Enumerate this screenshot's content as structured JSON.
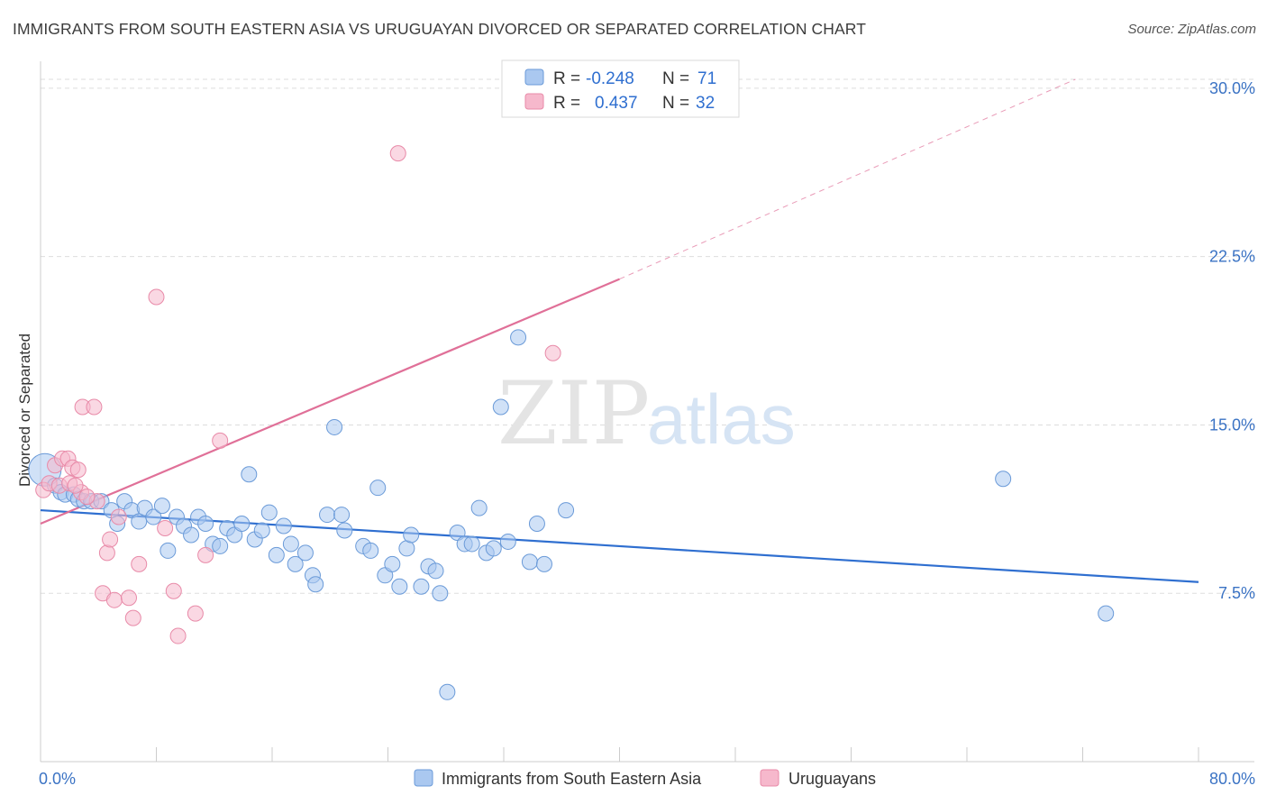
{
  "title": "IMMIGRANTS FROM SOUTH EASTERN ASIA VS URUGUAYAN DIVORCED OR SEPARATED CORRELATION CHART",
  "source": "Source: ZipAtlas.com",
  "watermark": {
    "zip": "ZIP",
    "atlas": "atlas"
  },
  "colors": {
    "blue_fill": "#aac8f0",
    "blue_stroke": "#6a9ad8",
    "blue_line": "#2f6fd0",
    "pink_fill": "#f6b8cc",
    "pink_stroke": "#e88aa8",
    "pink_line": "#e07098",
    "grid": "#dddddd",
    "tick_text": "#3b73c4"
  },
  "legend": {
    "rows": [
      {
        "r_label": "R =",
        "r_value": "-0.248",
        "n_label": "N =",
        "n_value": "71",
        "series": "blue"
      },
      {
        "r_label": "R =",
        "r_value": "0.437",
        "n_label": "N =",
        "n_value": "32",
        "series": "pink"
      }
    ]
  },
  "chart_data": {
    "type": "scatter",
    "title": "IMMIGRANTS FROM SOUTH EASTERN ASIA VS URUGUAYAN DIVORCED OR SEPARATED CORRELATION CHART",
    "xlabel": "",
    "ylabel": "Divorced or Separated",
    "xlim": [
      0,
      80
    ],
    "ylim": [
      0,
      31
    ],
    "x_tick_labels": [
      {
        "value": 0,
        "label": "0.0%"
      },
      {
        "value": 80,
        "label": "80.0%"
      }
    ],
    "y_ticks": [
      {
        "value": 7.5,
        "label": "7.5%"
      },
      {
        "value": 15,
        "label": "15.0%"
      },
      {
        "value": 22.5,
        "label": "22.5%"
      },
      {
        "value": 30,
        "label": "30.0%"
      }
    ],
    "grid": true,
    "legend_position": "top-center",
    "series": [
      {
        "name": "Immigrants from South Eastern Asia",
        "color": "#aac8f0",
        "points": [
          [
            0.3,
            13.0
          ],
          [
            1.0,
            12.3
          ],
          [
            1.4,
            12.0
          ],
          [
            1.7,
            11.9
          ],
          [
            2.3,
            11.9
          ],
          [
            2.6,
            11.7
          ],
          [
            3.0,
            11.6
          ],
          [
            3.5,
            11.6
          ],
          [
            4.2,
            11.6
          ],
          [
            4.9,
            11.2
          ],
          [
            5.3,
            10.6
          ],
          [
            5.8,
            11.6
          ],
          [
            6.3,
            11.2
          ],
          [
            6.8,
            10.7
          ],
          [
            7.2,
            11.3
          ],
          [
            7.8,
            10.9
          ],
          [
            8.4,
            11.4
          ],
          [
            8.8,
            9.4
          ],
          [
            9.4,
            10.9
          ],
          [
            9.9,
            10.5
          ],
          [
            10.4,
            10.1
          ],
          [
            10.9,
            10.9
          ],
          [
            11.4,
            10.6
          ],
          [
            11.9,
            9.7
          ],
          [
            12.4,
            9.6
          ],
          [
            12.9,
            10.4
          ],
          [
            13.4,
            10.1
          ],
          [
            13.9,
            10.6
          ],
          [
            14.4,
            12.8
          ],
          [
            14.8,
            9.9
          ],
          [
            15.3,
            10.3
          ],
          [
            15.8,
            11.1
          ],
          [
            16.3,
            9.2
          ],
          [
            16.8,
            10.5
          ],
          [
            17.3,
            9.7
          ],
          [
            17.6,
            8.8
          ],
          [
            18.3,
            9.3
          ],
          [
            18.8,
            8.3
          ],
          [
            19.0,
            7.9
          ],
          [
            19.8,
            11.0
          ],
          [
            20.3,
            14.9
          ],
          [
            20.8,
            11.0
          ],
          [
            21.0,
            10.3
          ],
          [
            22.3,
            9.6
          ],
          [
            22.8,
            9.4
          ],
          [
            23.3,
            12.2
          ],
          [
            23.8,
            8.3
          ],
          [
            24.3,
            8.8
          ],
          [
            24.8,
            7.8
          ],
          [
            25.3,
            9.5
          ],
          [
            25.6,
            10.1
          ],
          [
            26.3,
            7.8
          ],
          [
            26.8,
            8.7
          ],
          [
            27.3,
            8.5
          ],
          [
            27.6,
            7.5
          ],
          [
            28.1,
            3.1
          ],
          [
            28.8,
            10.2
          ],
          [
            29.3,
            9.7
          ],
          [
            29.8,
            9.7
          ],
          [
            30.3,
            11.3
          ],
          [
            30.8,
            9.3
          ],
          [
            31.3,
            9.5
          ],
          [
            31.8,
            15.8
          ],
          [
            32.3,
            9.8
          ],
          [
            33.0,
            18.9
          ],
          [
            33.8,
            8.9
          ],
          [
            34.3,
            10.6
          ],
          [
            34.8,
            8.8
          ],
          [
            36.3,
            11.2
          ],
          [
            66.5,
            12.6
          ],
          [
            73.6,
            6.6
          ]
        ]
      },
      {
        "name": "Uruguayans",
        "color": "#f6b8cc",
        "points": [
          [
            0.2,
            12.1
          ],
          [
            0.6,
            12.4
          ],
          [
            1.0,
            13.2
          ],
          [
            1.3,
            12.3
          ],
          [
            1.5,
            13.5
          ],
          [
            1.9,
            13.5
          ],
          [
            2.0,
            12.4
          ],
          [
            2.2,
            13.1
          ],
          [
            2.6,
            13.0
          ],
          [
            2.9,
            15.8
          ],
          [
            2.8,
            12.0
          ],
          [
            3.7,
            15.8
          ],
          [
            3.9,
            11.6
          ],
          [
            4.3,
            7.5
          ],
          [
            4.6,
            9.3
          ],
          [
            4.8,
            9.9
          ],
          [
            5.1,
            7.2
          ],
          [
            5.4,
            10.9
          ],
          [
            6.1,
            7.3
          ],
          [
            6.4,
            6.4
          ],
          [
            6.8,
            8.8
          ],
          [
            8.0,
            20.7
          ],
          [
            8.6,
            10.4
          ],
          [
            9.2,
            7.6
          ],
          [
            9.5,
            5.6
          ],
          [
            10.7,
            6.6
          ],
          [
            11.4,
            9.2
          ],
          [
            12.4,
            14.3
          ],
          [
            24.7,
            27.1
          ],
          [
            35.4,
            18.2
          ],
          [
            2.4,
            12.3
          ],
          [
            3.2,
            11.8
          ]
        ]
      }
    ],
    "trendlines": [
      {
        "series": "Immigrants from South Eastern Asia",
        "from": [
          0,
          11.2
        ],
        "to": [
          80,
          8.0
        ],
        "style": "solid"
      },
      {
        "series": "Uruguayans",
        "from": [
          0,
          10.6
        ],
        "to": [
          40,
          21.5
        ],
        "style": "solid"
      },
      {
        "series": "Uruguayans",
        "from": [
          40,
          21.5
        ],
        "to": [
          71.5,
          30.4
        ],
        "style": "dashed"
      }
    ]
  },
  "bottom_legend": [
    {
      "label": "Immigrants from South Eastern Asia",
      "series": "blue"
    },
    {
      "label": "Uruguayans",
      "series": "pink"
    }
  ]
}
